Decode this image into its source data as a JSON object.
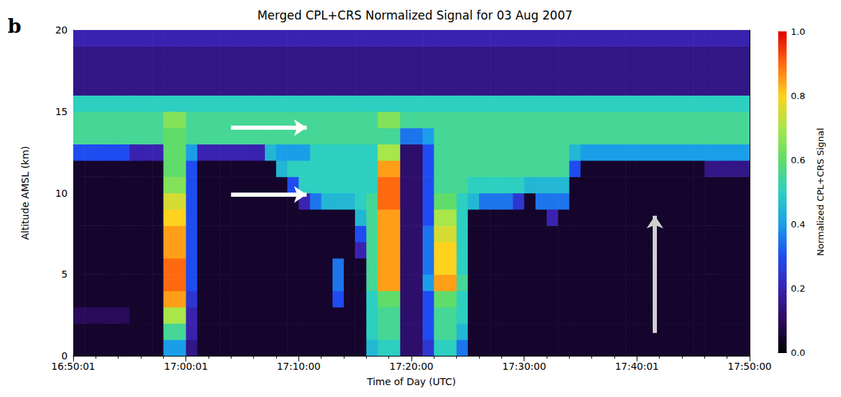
{
  "chart_data": {
    "type": "heatmap",
    "panel": "b",
    "title": "Merged CPL+CRS Normalized Signal for 03 Aug 2007",
    "x_label": "Time of Day (UTC)",
    "y_label": "Altitude AMSL (km)",
    "xlim": [
      1010,
      1070
    ],
    "xticks": [
      {
        "value": 1010,
        "label": "16:50:01"
      },
      {
        "value": 1020,
        "label": "17:00:01"
      },
      {
        "value": 1030,
        "label": "17:10:00"
      },
      {
        "value": 1040,
        "label": "17:20:00"
      },
      {
        "value": 1050,
        "label": "17:30:00"
      },
      {
        "value": 1060,
        "label": "17:40:01"
      },
      {
        "value": 1070,
        "label": "17:50:00"
      }
    ],
    "ylim": [
      0,
      20
    ],
    "yticks": [
      0,
      5,
      10,
      15,
      20
    ],
    "grid": false,
    "x_bins": [
      1010,
      1011,
      1012,
      1013,
      1014,
      1015,
      1016,
      1017,
      1018,
      1019,
      1020,
      1021,
      1022,
      1023,
      1024,
      1025,
      1026,
      1027,
      1028,
      1029,
      1030,
      1031,
      1032,
      1033,
      1034,
      1035,
      1036,
      1037,
      1038,
      1039,
      1040,
      1041,
      1042,
      1043,
      1044,
      1045,
      1046,
      1047,
      1048,
      1049,
      1050,
      1051,
      1052,
      1053,
      1054,
      1055,
      1056,
      1057,
      1058,
      1059,
      1060,
      1061,
      1062,
      1063,
      1064,
      1065,
      1066,
      1067,
      1068,
      1069,
      1070
    ],
    "y_bins": [
      0,
      1,
      2,
      3,
      4,
      5,
      6,
      7,
      8,
      9,
      10,
      11,
      12,
      13,
      14,
      15,
      16,
      17,
      18,
      19,
      20
    ],
    "cells": [
      [
        0.05,
        0.05,
        0.05,
        0.05,
        0.05,
        0.05,
        0.05,
        0.05,
        0.4,
        0.4,
        0.15,
        0.05,
        0.05,
        0.05,
        0.05,
        0.05,
        0.05,
        0.05,
        0.05,
        0.05,
        0.05,
        0.05,
        0.05,
        0.05,
        0.05,
        0.05,
        0.45,
        0.5,
        0.5,
        0.12,
        0.12,
        0.25,
        0.5,
        0.5,
        0.35,
        0.05,
        0.05,
        0.05,
        0.05,
        0.05,
        0.05,
        0.05,
        0.05,
        0.05,
        0.05,
        0.05,
        0.05,
        0.05,
        0.05,
        0.05,
        0.05,
        0.05,
        0.05,
        0.05,
        0.05,
        0.05,
        0.05,
        0.05,
        0.05,
        0.05
      ],
      [
        0.05,
        0.05,
        0.05,
        0.05,
        0.05,
        0.05,
        0.05,
        0.05,
        0.55,
        0.55,
        0.2,
        0.05,
        0.05,
        0.05,
        0.05,
        0.05,
        0.05,
        0.05,
        0.05,
        0.05,
        0.05,
        0.05,
        0.05,
        0.05,
        0.05,
        0.05,
        0.5,
        0.55,
        0.55,
        0.12,
        0.12,
        0.3,
        0.55,
        0.55,
        0.45,
        0.05,
        0.05,
        0.05,
        0.05,
        0.05,
        0.05,
        0.05,
        0.05,
        0.05,
        0.05,
        0.05,
        0.05,
        0.05,
        0.05,
        0.05,
        0.05,
        0.05,
        0.05,
        0.05,
        0.05,
        0.05,
        0.05,
        0.05,
        0.05,
        0.05
      ],
      [
        0.1,
        0.1,
        0.1,
        0.1,
        0.1,
        0.05,
        0.05,
        0.05,
        0.7,
        0.7,
        0.2,
        0.05,
        0.05,
        0.05,
        0.05,
        0.05,
        0.05,
        0.05,
        0.05,
        0.05,
        0.05,
        0.05,
        0.05,
        0.05,
        0.05,
        0.05,
        0.5,
        0.55,
        0.55,
        0.12,
        0.12,
        0.3,
        0.55,
        0.55,
        0.5,
        0.05,
        0.05,
        0.05,
        0.05,
        0.05,
        0.05,
        0.05,
        0.05,
        0.05,
        0.05,
        0.05,
        0.05,
        0.05,
        0.05,
        0.05,
        0.05,
        0.05,
        0.05,
        0.05,
        0.05,
        0.05,
        0.05,
        0.05,
        0.05,
        0.05
      ],
      [
        0.05,
        0.05,
        0.05,
        0.05,
        0.05,
        0.05,
        0.05,
        0.05,
        0.85,
        0.85,
        0.25,
        0.05,
        0.05,
        0.05,
        0.05,
        0.05,
        0.05,
        0.05,
        0.05,
        0.05,
        0.05,
        0.05,
        0.05,
        0.3,
        0.05,
        0.05,
        0.5,
        0.6,
        0.6,
        0.12,
        0.12,
        0.3,
        0.6,
        0.6,
        0.5,
        0.05,
        0.05,
        0.05,
        0.05,
        0.05,
        0.05,
        0.05,
        0.05,
        0.05,
        0.05,
        0.05,
        0.05,
        0.05,
        0.05,
        0.05,
        0.05,
        0.05,
        0.05,
        0.05,
        0.05,
        0.05,
        0.05,
        0.05,
        0.05,
        0.05
      ],
      [
        0.05,
        0.05,
        0.05,
        0.05,
        0.05,
        0.05,
        0.05,
        0.05,
        0.9,
        0.9,
        0.3,
        0.05,
        0.05,
        0.05,
        0.05,
        0.05,
        0.05,
        0.05,
        0.05,
        0.05,
        0.05,
        0.05,
        0.05,
        0.35,
        0.05,
        0.05,
        0.55,
        0.85,
        0.85,
        0.12,
        0.12,
        0.4,
        0.85,
        0.85,
        0.55,
        0.05,
        0.05,
        0.05,
        0.05,
        0.05,
        0.05,
        0.05,
        0.05,
        0.05,
        0.05,
        0.05,
        0.05,
        0.05,
        0.05,
        0.05,
        0.05,
        0.05,
        0.05,
        0.05,
        0.05,
        0.05,
        0.05,
        0.05,
        0.05,
        0.05
      ],
      [
        0.05,
        0.05,
        0.05,
        0.05,
        0.05,
        0.05,
        0.05,
        0.05,
        0.9,
        0.9,
        0.3,
        0.05,
        0.05,
        0.05,
        0.05,
        0.05,
        0.05,
        0.05,
        0.05,
        0.05,
        0.05,
        0.05,
        0.05,
        0.35,
        0.05,
        0.05,
        0.55,
        0.85,
        0.85,
        0.12,
        0.12,
        0.35,
        0.8,
        0.8,
        0.5,
        0.05,
        0.05,
        0.05,
        0.05,
        0.05,
        0.05,
        0.05,
        0.05,
        0.05,
        0.05,
        0.05,
        0.05,
        0.05,
        0.05,
        0.05,
        0.05,
        0.05,
        0.05,
        0.05,
        0.05,
        0.05,
        0.05,
        0.05,
        0.05,
        0.05
      ],
      [
        0.05,
        0.05,
        0.05,
        0.05,
        0.05,
        0.05,
        0.05,
        0.05,
        0.85,
        0.85,
        0.3,
        0.05,
        0.05,
        0.05,
        0.05,
        0.05,
        0.05,
        0.05,
        0.05,
        0.05,
        0.05,
        0.05,
        0.05,
        0.05,
        0.05,
        0.2,
        0.55,
        0.85,
        0.85,
        0.12,
        0.12,
        0.35,
        0.8,
        0.8,
        0.5,
        0.05,
        0.05,
        0.05,
        0.05,
        0.05,
        0.05,
        0.05,
        0.05,
        0.05,
        0.05,
        0.05,
        0.05,
        0.05,
        0.05,
        0.05,
        0.05,
        0.05,
        0.05,
        0.05,
        0.05,
        0.05,
        0.05,
        0.05,
        0.05,
        0.05
      ],
      [
        0.05,
        0.05,
        0.05,
        0.05,
        0.05,
        0.05,
        0.05,
        0.05,
        0.85,
        0.85,
        0.3,
        0.05,
        0.05,
        0.05,
        0.05,
        0.05,
        0.05,
        0.05,
        0.05,
        0.05,
        0.05,
        0.05,
        0.05,
        0.05,
        0.05,
        0.3,
        0.55,
        0.85,
        0.85,
        0.12,
        0.12,
        0.35,
        0.75,
        0.75,
        0.5,
        0.05,
        0.05,
        0.05,
        0.05,
        0.05,
        0.05,
        0.05,
        0.05,
        0.05,
        0.05,
        0.05,
        0.05,
        0.05,
        0.05,
        0.05,
        0.05,
        0.05,
        0.05,
        0.05,
        0.05,
        0.05,
        0.05,
        0.05,
        0.05,
        0.05
      ],
      [
        0.05,
        0.05,
        0.05,
        0.05,
        0.05,
        0.05,
        0.05,
        0.05,
        0.8,
        0.8,
        0.3,
        0.05,
        0.05,
        0.05,
        0.05,
        0.05,
        0.05,
        0.05,
        0.05,
        0.05,
        0.05,
        0.05,
        0.05,
        0.05,
        0.05,
        0.45,
        0.55,
        0.85,
        0.85,
        0.12,
        0.12,
        0.3,
        0.7,
        0.7,
        0.5,
        0.05,
        0.05,
        0.05,
        0.05,
        0.05,
        0.05,
        0.05,
        0.2,
        0.05,
        0.05,
        0.05,
        0.05,
        0.05,
        0.05,
        0.05,
        0.05,
        0.05,
        0.05,
        0.05,
        0.05,
        0.05,
        0.05,
        0.05,
        0.05,
        0.05
      ],
      [
        0.05,
        0.05,
        0.05,
        0.05,
        0.05,
        0.05,
        0.05,
        0.05,
        0.75,
        0.75,
        0.3,
        0.05,
        0.05,
        0.05,
        0.05,
        0.05,
        0.05,
        0.05,
        0.05,
        0.05,
        0.2,
        0.35,
        0.45,
        0.45,
        0.45,
        0.5,
        0.55,
        0.9,
        0.9,
        0.12,
        0.12,
        0.3,
        0.6,
        0.6,
        0.5,
        0.45,
        0.35,
        0.35,
        0.35,
        0.25,
        0.05,
        0.35,
        0.35,
        0.35,
        0.05,
        0.05,
        0.05,
        0.05,
        0.05,
        0.05,
        0.05,
        0.05,
        0.05,
        0.05,
        0.05,
        0.05,
        0.05,
        0.05,
        0.05,
        0.05
      ],
      [
        0.05,
        0.05,
        0.05,
        0.05,
        0.05,
        0.05,
        0.05,
        0.05,
        0.65,
        0.65,
        0.3,
        0.05,
        0.05,
        0.05,
        0.05,
        0.05,
        0.05,
        0.05,
        0.05,
        0.3,
        0.5,
        0.5,
        0.5,
        0.5,
        0.5,
        0.5,
        0.5,
        0.9,
        0.9,
        0.12,
        0.12,
        0.3,
        0.55,
        0.55,
        0.55,
        0.5,
        0.5,
        0.5,
        0.5,
        0.5,
        0.45,
        0.45,
        0.45,
        0.45,
        0.05,
        0.05,
        0.05,
        0.05,
        0.05,
        0.05,
        0.05,
        0.05,
        0.05,
        0.05,
        0.05,
        0.05,
        0.05,
        0.05,
        0.05,
        0.05
      ],
      [
        0.05,
        0.05,
        0.05,
        0.05,
        0.05,
        0.05,
        0.05,
        0.05,
        0.6,
        0.6,
        0.3,
        0.05,
        0.05,
        0.05,
        0.05,
        0.05,
        0.05,
        0.05,
        0.45,
        0.5,
        0.5,
        0.5,
        0.5,
        0.5,
        0.5,
        0.5,
        0.5,
        0.85,
        0.85,
        0.12,
        0.12,
        0.3,
        0.55,
        0.55,
        0.55,
        0.55,
        0.55,
        0.55,
        0.55,
        0.55,
        0.55,
        0.55,
        0.55,
        0.55,
        0.3,
        0.05,
        0.05,
        0.05,
        0.05,
        0.05,
        0.05,
        0.05,
        0.05,
        0.05,
        0.05,
        0.05,
        0.15,
        0.15,
        0.15,
        0.15
      ],
      [
        0.3,
        0.3,
        0.3,
        0.3,
        0.3,
        0.2,
        0.2,
        0.2,
        0.6,
        0.6,
        0.4,
        0.2,
        0.2,
        0.2,
        0.2,
        0.2,
        0.2,
        0.45,
        0.4,
        0.4,
        0.4,
        0.5,
        0.5,
        0.5,
        0.5,
        0.5,
        0.5,
        0.7,
        0.7,
        0.12,
        0.12,
        0.3,
        0.55,
        0.55,
        0.55,
        0.55,
        0.55,
        0.55,
        0.55,
        0.55,
        0.55,
        0.55,
        0.55,
        0.55,
        0.45,
        0.4,
        0.4,
        0.4,
        0.4,
        0.4,
        0.4,
        0.4,
        0.4,
        0.4,
        0.4,
        0.4,
        0.4,
        0.4,
        0.4,
        0.4
      ],
      [
        0.55,
        0.55,
        0.55,
        0.55,
        0.55,
        0.55,
        0.55,
        0.55,
        0.6,
        0.6,
        0.55,
        0.55,
        0.55,
        0.55,
        0.55,
        0.55,
        0.55,
        0.55,
        0.55,
        0.55,
        0.55,
        0.55,
        0.55,
        0.55,
        0.55,
        0.55,
        0.55,
        0.55,
        0.55,
        0.35,
        0.35,
        0.4,
        0.55,
        0.55,
        0.55,
        0.55,
        0.55,
        0.55,
        0.55,
        0.55,
        0.55,
        0.55,
        0.55,
        0.55,
        0.55,
        0.55,
        0.55,
        0.55,
        0.55,
        0.55,
        0.55,
        0.55,
        0.55,
        0.55,
        0.55,
        0.55,
        0.55,
        0.55,
        0.55,
        0.55
      ],
      [
        0.55,
        0.55,
        0.55,
        0.55,
        0.55,
        0.55,
        0.55,
        0.55,
        0.65,
        0.65,
        0.55,
        0.55,
        0.55,
        0.55,
        0.55,
        0.55,
        0.55,
        0.55,
        0.55,
        0.55,
        0.55,
        0.55,
        0.55,
        0.55,
        0.55,
        0.55,
        0.55,
        0.65,
        0.65,
        0.55,
        0.55,
        0.55,
        0.55,
        0.55,
        0.55,
        0.55,
        0.55,
        0.55,
        0.55,
        0.55,
        0.55,
        0.55,
        0.55,
        0.55,
        0.55,
        0.55,
        0.55,
        0.55,
        0.55,
        0.55,
        0.55,
        0.55,
        0.55,
        0.55,
        0.55,
        0.55,
        0.55,
        0.55,
        0.55,
        0.55
      ],
      [
        0.5,
        0.5,
        0.5,
        0.5,
        0.5,
        0.5,
        0.5,
        0.5,
        0.5,
        0.5,
        0.5,
        0.5,
        0.5,
        0.5,
        0.5,
        0.5,
        0.5,
        0.5,
        0.5,
        0.5,
        0.5,
        0.5,
        0.5,
        0.5,
        0.5,
        0.5,
        0.5,
        0.5,
        0.5,
        0.5,
        0.5,
        0.5,
        0.5,
        0.5,
        0.5,
        0.5,
        0.5,
        0.5,
        0.5,
        0.5,
        0.5,
        0.5,
        0.5,
        0.5,
        0.5,
        0.5,
        0.5,
        0.5,
        0.5,
        0.5,
        0.5,
        0.5,
        0.5,
        0.5,
        0.5,
        0.5,
        0.5,
        0.5,
        0.5,
        0.5
      ],
      [
        0.15,
        0.15,
        0.15,
        0.15,
        0.15,
        0.15,
        0.15,
        0.15,
        0.15,
        0.15,
        0.15,
        0.15,
        0.15,
        0.15,
        0.15,
        0.15,
        0.15,
        0.15,
        0.15,
        0.15,
        0.15,
        0.15,
        0.15,
        0.15,
        0.15,
        0.15,
        0.15,
        0.15,
        0.15,
        0.15,
        0.15,
        0.15,
        0.15,
        0.15,
        0.15,
        0.15,
        0.15,
        0.15,
        0.15,
        0.15,
        0.15,
        0.15,
        0.15,
        0.15,
        0.15,
        0.15,
        0.15,
        0.15,
        0.15,
        0.15,
        0.15,
        0.15,
        0.15,
        0.15,
        0.15,
        0.15,
        0.15,
        0.15,
        0.15,
        0.15
      ],
      [
        0.15,
        0.15,
        0.15,
        0.15,
        0.15,
        0.15,
        0.15,
        0.15,
        0.15,
        0.15,
        0.15,
        0.15,
        0.15,
        0.15,
        0.15,
        0.15,
        0.15,
        0.15,
        0.15,
        0.15,
        0.15,
        0.15,
        0.15,
        0.15,
        0.15,
        0.15,
        0.15,
        0.15,
        0.15,
        0.15,
        0.15,
        0.15,
        0.15,
        0.15,
        0.15,
        0.15,
        0.15,
        0.15,
        0.15,
        0.15,
        0.15,
        0.15,
        0.15,
        0.15,
        0.15,
        0.15,
        0.15,
        0.15,
        0.15,
        0.15,
        0.15,
        0.15,
        0.15,
        0.15,
        0.15,
        0.15,
        0.15,
        0.15,
        0.15,
        0.15
      ],
      [
        0.15,
        0.15,
        0.15,
        0.15,
        0.15,
        0.15,
        0.15,
        0.15,
        0.15,
        0.15,
        0.15,
        0.15,
        0.15,
        0.15,
        0.15,
        0.15,
        0.15,
        0.15,
        0.15,
        0.15,
        0.15,
        0.15,
        0.15,
        0.15,
        0.15,
        0.15,
        0.15,
        0.15,
        0.15,
        0.15,
        0.15,
        0.15,
        0.15,
        0.15,
        0.15,
        0.15,
        0.15,
        0.15,
        0.15,
        0.15,
        0.15,
        0.15,
        0.15,
        0.15,
        0.15,
        0.15,
        0.15,
        0.15,
        0.15,
        0.15,
        0.15,
        0.15,
        0.15,
        0.15,
        0.15,
        0.15,
        0.15,
        0.15,
        0.15,
        0.15
      ],
      [
        0.2,
        0.2,
        0.2,
        0.2,
        0.2,
        0.2,
        0.2,
        0.2,
        0.2,
        0.2,
        0.2,
        0.2,
        0.2,
        0.2,
        0.2,
        0.2,
        0.2,
        0.2,
        0.2,
        0.2,
        0.2,
        0.2,
        0.2,
        0.2,
        0.2,
        0.2,
        0.2,
        0.2,
        0.2,
        0.2,
        0.2,
        0.2,
        0.2,
        0.2,
        0.2,
        0.2,
        0.2,
        0.2,
        0.2,
        0.2,
        0.2,
        0.2,
        0.2,
        0.2,
        0.2,
        0.2,
        0.2,
        0.2,
        0.2,
        0.2,
        0.2,
        0.2,
        0.2,
        0.2,
        0.2,
        0.2,
        0.2,
        0.2,
        0.2,
        0.2
      ]
    ],
    "colorbar": {
      "label": "Normalized CPL+CRS Signal",
      "range": [
        0,
        1
      ],
      "ticks": [
        {
          "value": 0,
          "label": "0.0"
        },
        0.2,
        0.4,
        0.6,
        0.8,
        {
          "value": 1,
          "label": "1.0"
        }
      ]
    },
    "arrows": [
      {
        "from": [
          1024,
          14
        ],
        "to": [
          1030.7,
          14
        ],
        "color": "#ffffff"
      },
      {
        "from": [
          1024,
          9.9
        ],
        "to": [
          1030.7,
          9.9
        ],
        "color": "#ffffff"
      },
      {
        "from": [
          1061.6,
          1.4
        ],
        "to": [
          1061.6,
          8.6
        ],
        "color": "#d0d0d0"
      }
    ]
  }
}
